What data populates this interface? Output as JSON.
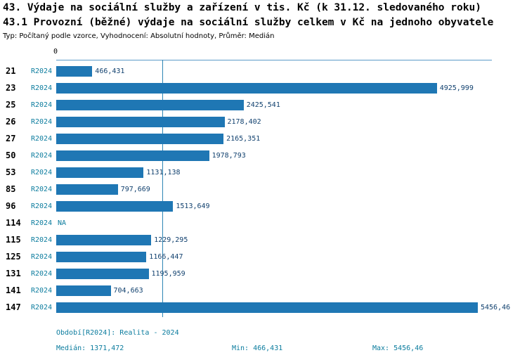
{
  "title_line1": "43. Výdaje na sociální služby a zařízení v tis. Kč (k 31.12. sledovaného roku)",
  "title_line2": "43.1 Provozní (běžné) výdaje na sociální služby celkem v Kč na jednoho obyvatele",
  "subtitle": "Typ: Počítaný podle vzorce, Vyhodnocení: Absolutní hodnoty, Průměr: Medián",
  "chart_data": {
    "type": "bar",
    "orientation": "horizontal",
    "title": "43.1 Provozní (běžné) výdaje na sociální služby celkem v Kč na jednoho obyvatele",
    "series_label": "R2024",
    "categories": [
      "21",
      "23",
      "25",
      "26",
      "27",
      "50",
      "53",
      "85",
      "96",
      "114",
      "115",
      "125",
      "131",
      "141",
      "147"
    ],
    "values": [
      466.431,
      4925.999,
      2425.541,
      2178.402,
      2165.351,
      1978.793,
      1131.138,
      797.669,
      1513.649,
      null,
      1229.295,
      1166.447,
      1195.959,
      704.663,
      5456.46
    ],
    "value_labels": [
      "466,431",
      "4925,999",
      "2425,541",
      "2178,402",
      "2165,351",
      "1978,793",
      "1131,138",
      "797,669",
      "1513,649",
      "NA",
      "1229,295",
      "1166,447",
      "1195,959",
      "704,663",
      "5456,46"
    ],
    "x_axis_zero_label": "0",
    "xlim": [
      0,
      5600
    ],
    "median": 1371.472,
    "min": 466.431,
    "max": 5456.46,
    "grid": "median-line-only",
    "legend_position": "none",
    "colors": {
      "bar": "#1f77b4",
      "series_label": "#0b7c9e",
      "value_label": "#10406e",
      "na_label": "#0b7c9e",
      "median_line": "#2e86b5",
      "footer_text": "#0b7c9e"
    }
  },
  "footer": {
    "period": "Období[R2024]: Realita - 2024",
    "median": "Medián: 1371,472",
    "min": "Min: 466,431",
    "max": "Max: 5456,46"
  }
}
